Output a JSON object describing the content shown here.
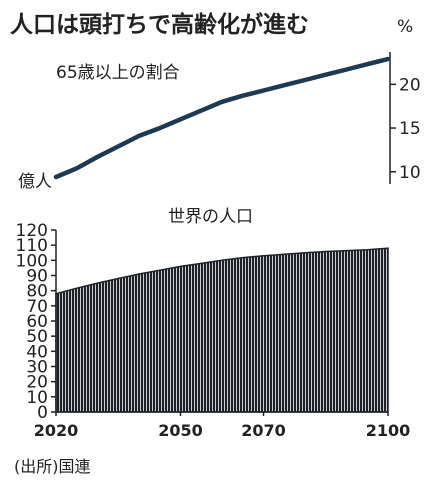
{
  "title": "人口は頭打ちで高齢化が進む",
  "source": "(出所)国連",
  "colors": {
    "line": "#1d3a52",
    "bar": "#1e2226",
    "bar_gap": "#c8ccd0",
    "axis": "#222222"
  },
  "chart_data": [
    {
      "type": "line",
      "series_label": "65歳以上の割合",
      "unit_label": "%",
      "x": [
        2020,
        2025,
        2030,
        2035,
        2040,
        2045,
        2050,
        2055,
        2060,
        2065,
        2070,
        2075,
        2080,
        2085,
        2090,
        2095,
        2100
      ],
      "values": [
        9.4,
        10.4,
        11.7,
        12.9,
        14.1,
        15.0,
        16.0,
        17.0,
        18.0,
        18.7,
        19.3,
        19.9,
        20.5,
        21.1,
        21.7,
        22.3,
        22.9
      ],
      "y_ticks": [
        10,
        15,
        20
      ],
      "ylim": [
        8.6,
        23.7
      ],
      "xlim": [
        2020,
        2100
      ],
      "axis_side": "right"
    },
    {
      "type": "area",
      "series_label": "世界の人口",
      "unit_label": "億人",
      "x": [
        2020,
        2025,
        2030,
        2035,
        2040,
        2045,
        2050,
        2055,
        2060,
        2065,
        2070,
        2075,
        2080,
        2085,
        2090,
        2095,
        2100
      ],
      "values": [
        78,
        81.6,
        85.0,
        88.0,
        91.0,
        93.5,
        96.0,
        98.0,
        100.0,
        101.8,
        103.0,
        104.0,
        105.0,
        105.8,
        106.4,
        107.0,
        108.0
      ],
      "y_ticks": [
        0,
        10,
        20,
        30,
        40,
        50,
        60,
        70,
        80,
        90,
        100,
        110,
        120
      ],
      "x_ticks": [
        2020,
        2050,
        2070,
        2100
      ],
      "ylim": [
        0,
        120
      ],
      "xlim": [
        2020,
        2100
      ],
      "axis_side": "left",
      "style": "vertical-hatch"
    }
  ]
}
